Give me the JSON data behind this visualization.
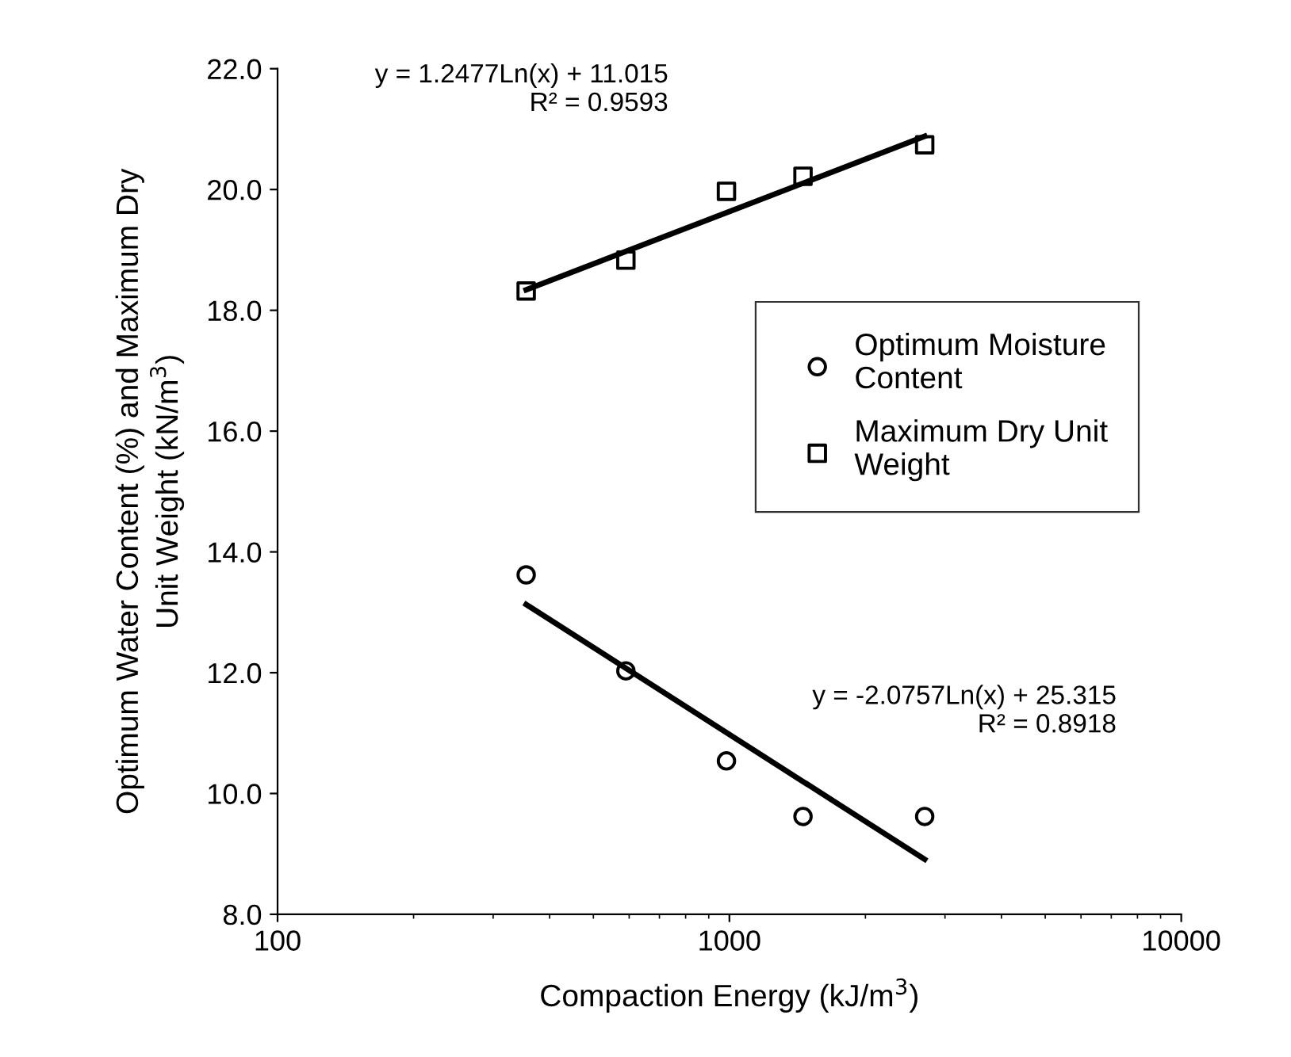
{
  "chart_data": {
    "type": "scatter",
    "xlabel": "Compaction Energy (kJ/m$^{3}$)",
    "ylabel": "Optimum Water Content (%) and Maximum Dry\nUnit Weight (kN/m$^{3}$)",
    "log": "x",
    "xlim": [
      100,
      10000
    ],
    "xticks": [
      100,
      1000,
      10000
    ],
    "ylim": [
      8,
      22
    ],
    "yticks": [
      {
        "value": 8,
        "label": "8.0"
      },
      {
        "value": 10,
        "label": "10.0"
      },
      {
        "value": 12,
        "label": "12.0"
      },
      {
        "value": 14,
        "label": "14.0"
      },
      {
        "value": 16,
        "label": "16.0"
      },
      {
        "value": 18,
        "label": "18.0"
      },
      {
        "value": 20,
        "label": "20.0"
      },
      {
        "value": 22,
        "label": "22.0"
      }
    ],
    "grid": false,
    "legend": "center right",
    "series": [
      {
        "name": "Optimum Moisture Content",
        "marker": "circle",
        "color": "#000000",
        "x": [
          355,
          590,
          985,
          1455,
          2705
        ],
        "values": [
          13.62,
          12.03,
          10.54,
          9.62,
          9.62
        ]
      },
      {
        "name": "Maximum Dry Unit Weight",
        "marker": "square",
        "color": "#000000",
        "x": [
          355,
          590,
          985,
          1455,
          2705
        ],
        "values": [
          18.32,
          18.83,
          19.97,
          20.22,
          20.74
        ]
      },
      {
        "type": "line",
        "color": "#000000",
        "x": [
          355,
          2705
        ],
        "values": [
          18.34,
          20.88
        ]
      },
      {
        "type": "line",
        "color": "#000000",
        "x": [
          355,
          2705
        ],
        "values": [
          13.13,
          8.91
        ]
      }
    ],
    "annotations": [
      "y = 1.2477Ln(x) + 11.015\nR² = 0.9593",
      "y = -2.0757Ln(x) + 25.315\nR² = 0.8918"
    ]
  }
}
